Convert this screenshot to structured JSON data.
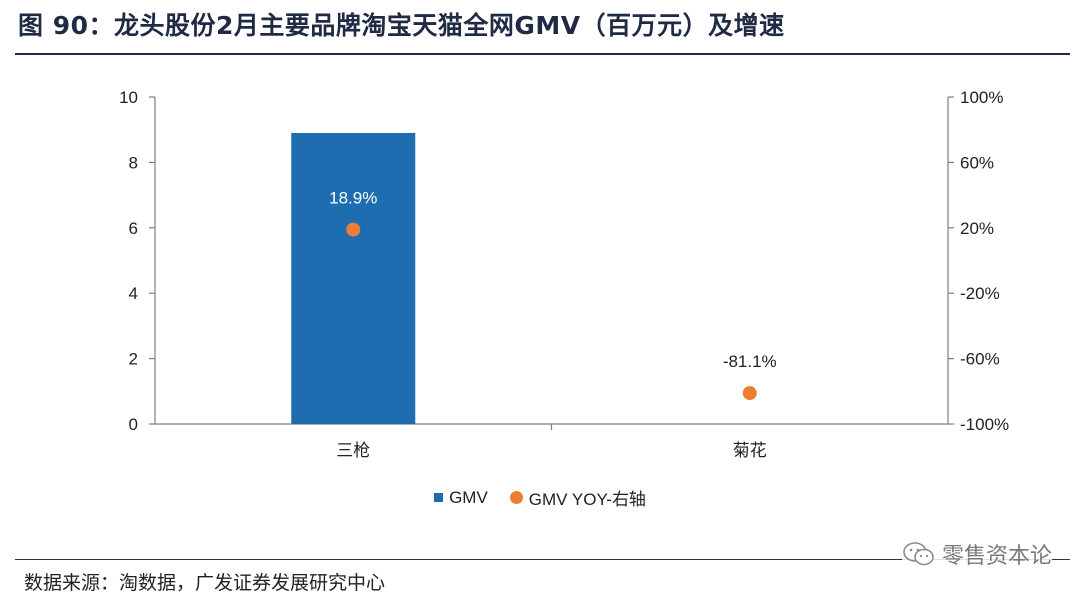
{
  "title": "图 90：龙头股份2月主要品牌淘宝天猫全网GMV（百万元）及增速",
  "source": "数据来源：淘数据，广发证券发展研究中心",
  "watermark": "零售资本论",
  "colors": {
    "bar": "#1f6db1",
    "dot": "#ed7d31",
    "title": "#1f2a44",
    "axis": "#7f7f7f"
  },
  "chart_data": {
    "type": "bar",
    "categories": [
      "三枪",
      "菊花"
    ],
    "series": [
      {
        "name": "GMV",
        "type": "bar",
        "axis": "left",
        "values": [
          8.9,
          0.0
        ]
      },
      {
        "name": "GMV YOY-右轴",
        "type": "scatter",
        "axis": "right",
        "values": [
          18.9,
          -81.1
        ],
        "labels": [
          "18.9%",
          "-81.1%"
        ]
      }
    ],
    "left_axis": {
      "min": 0,
      "max": 10,
      "ticks": [
        0,
        2,
        4,
        6,
        8,
        10
      ],
      "tick_labels": [
        "0",
        "2",
        "4",
        "6",
        "8",
        "10"
      ]
    },
    "right_axis": {
      "min": -100,
      "max": 100,
      "ticks": [
        -100,
        -60,
        -20,
        20,
        60,
        100
      ],
      "tick_labels": [
        "-100%",
        "-60%",
        "-20%",
        "20%",
        "60%",
        "100%"
      ]
    },
    "grid": false,
    "legend_position": "bottom"
  }
}
